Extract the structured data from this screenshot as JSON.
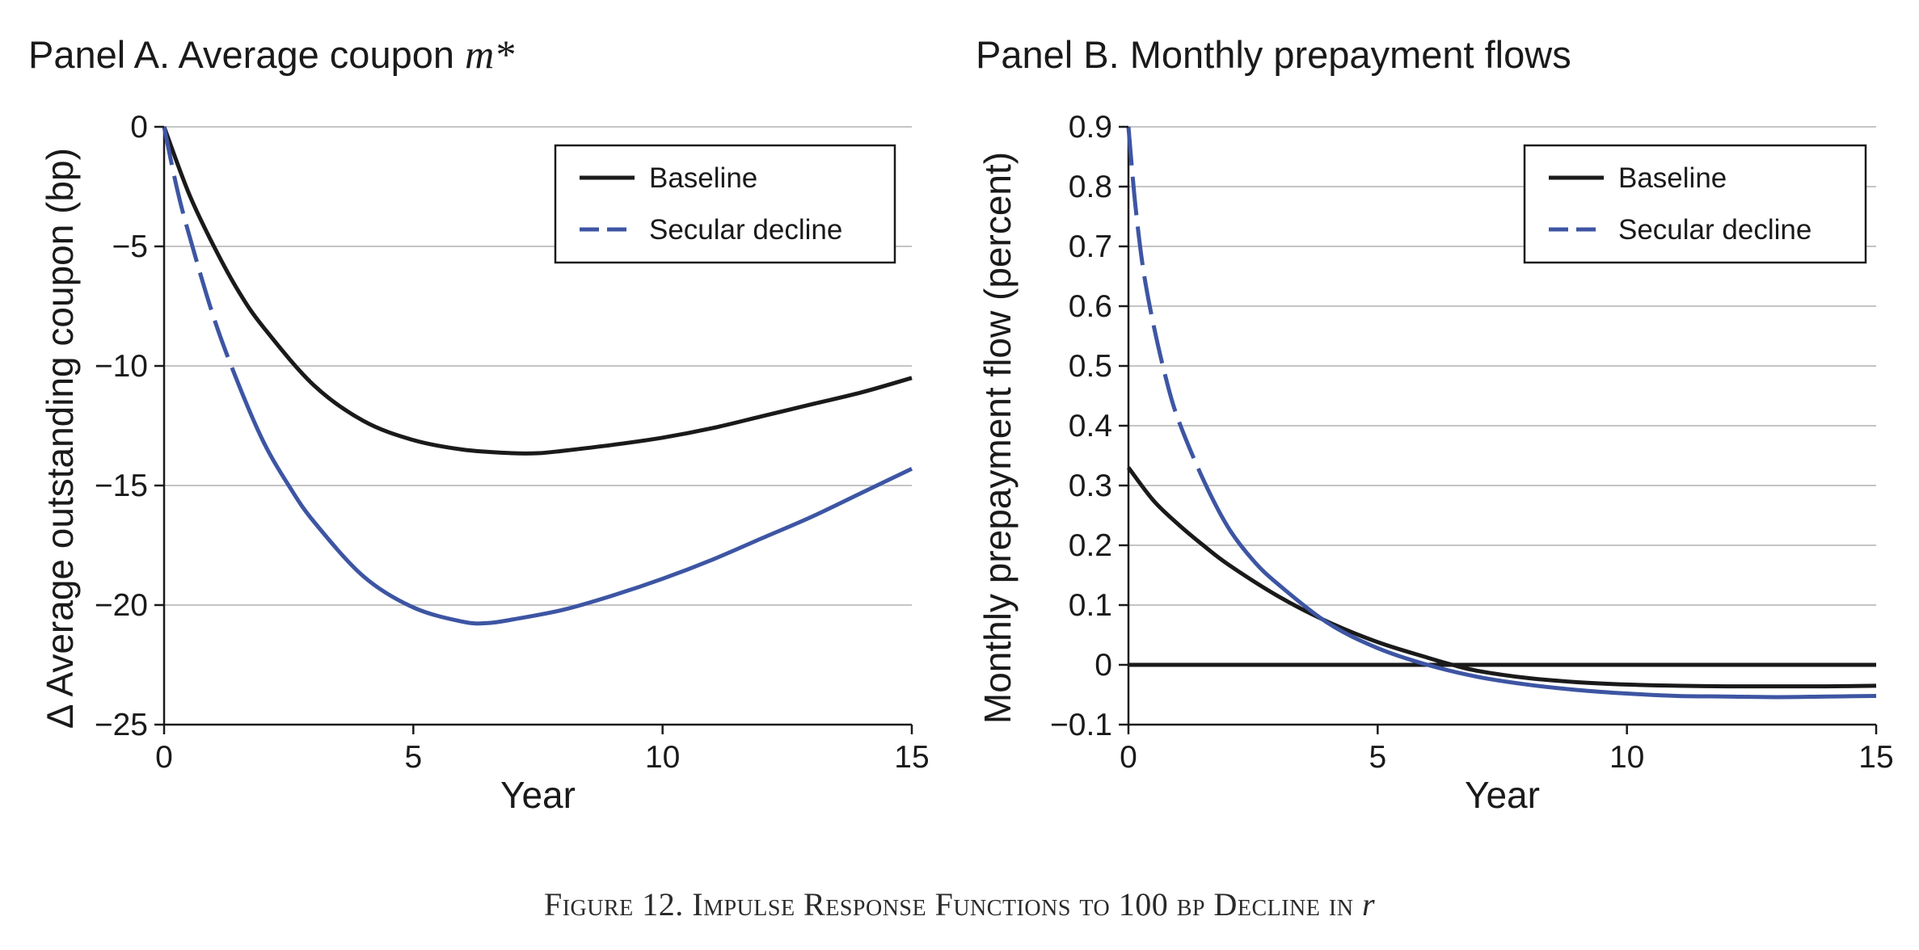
{
  "caption": {
    "text": "Figure 12. Impulse Response Functions to 100 bp Decline in",
    "math": "r"
  },
  "colors": {
    "baseline": "#1a1a1a",
    "secular": "#3d55a3",
    "grid": "#c4c4c4"
  },
  "chart_data": [
    {
      "type": "line",
      "title": "Panel A. Average coupon",
      "title_math": "m*",
      "xlabel": "Year",
      "ylabel": "∆ Average outstanding coupon (bp)",
      "xlim": [
        0,
        15
      ],
      "ylim": [
        -25,
        0
      ],
      "xticks": [
        0,
        5,
        10,
        15
      ],
      "yticks": [
        0,
        -5,
        -10,
        -15,
        -20,
        -25
      ],
      "ytick_labels": [
        "0",
        "−5",
        "−10",
        "−15",
        "−20",
        "−25"
      ],
      "grid": true,
      "legend": "top-right",
      "series": [
        {
          "name": "Baseline",
          "style": "solid",
          "x": [
            0,
            0.5,
            1,
            1.5,
            2,
            3,
            4,
            5,
            6,
            7,
            7.5,
            8,
            9,
            10,
            11,
            12,
            13,
            14,
            15
          ],
          "y": [
            0,
            -2.8,
            -5.0,
            -6.9,
            -8.4,
            -10.8,
            -12.3,
            -13.1,
            -13.5,
            -13.65,
            -13.65,
            -13.55,
            -13.3,
            -13.0,
            -12.6,
            -12.1,
            -11.6,
            -11.1,
            -10.5
          ]
        },
        {
          "name": "Secular decline",
          "style": "dashed",
          "x": [
            0,
            0.25,
            0.5,
            1,
            1.5,
            2,
            2.5,
            3,
            4,
            5,
            6,
            6.5,
            7,
            8,
            9,
            10,
            11,
            12,
            13,
            14,
            15
          ],
          "y": [
            0,
            -2.5,
            -4.5,
            -8.0,
            -10.8,
            -13.2,
            -15.0,
            -16.5,
            -18.8,
            -20.1,
            -20.7,
            -20.75,
            -20.6,
            -20.2,
            -19.6,
            -18.9,
            -18.1,
            -17.2,
            -16.3,
            -15.3,
            -14.3
          ]
        }
      ]
    },
    {
      "type": "line",
      "title": "Panel B. Monthly prepayment flows",
      "xlabel": "Year",
      "ylabel": "Monthly prepayment flow (percent)",
      "xlim": [
        0,
        15
      ],
      "ylim": [
        -0.1,
        0.9
      ],
      "xticks": [
        0,
        5,
        10,
        15
      ],
      "yticks": [
        -0.1,
        0,
        0.1,
        0.2,
        0.3,
        0.4,
        0.5,
        0.6,
        0.7,
        0.8,
        0.9
      ],
      "ytick_labels": [
        "−0.1",
        "0",
        "0.1",
        "0.2",
        "0.3",
        "0.4",
        "0.5",
        "0.6",
        "0.7",
        "0.8",
        "0.9"
      ],
      "grid": true,
      "legend": "top-right",
      "zero_line": [
        0,
        0
      ],
      "series": [
        {
          "name": "Baseline",
          "style": "solid",
          "x": [
            0,
            0.5,
            1,
            1.5,
            2,
            3,
            4,
            5,
            6,
            6.5,
            7,
            8,
            9,
            10,
            11,
            12,
            13,
            14,
            15
          ],
          "y": [
            0.33,
            0.275,
            0.235,
            0.2,
            0.168,
            0.115,
            0.072,
            0.038,
            0.012,
            0.0,
            -0.01,
            -0.022,
            -0.029,
            -0.033,
            -0.035,
            -0.036,
            -0.036,
            -0.036,
            -0.035
          ]
        },
        {
          "name": "Secular decline",
          "style": "dashed",
          "x": [
            0,
            0.05,
            0.15,
            0.3,
            0.5,
            0.75,
            1,
            1.5,
            2,
            2.5,
            3,
            4,
            5,
            6,
            7,
            8,
            9,
            10,
            11,
            12,
            13,
            14,
            15
          ],
          "y": [
            0.9,
            0.85,
            0.76,
            0.66,
            0.57,
            0.48,
            0.41,
            0.31,
            0.23,
            0.175,
            0.135,
            0.07,
            0.028,
            0.0,
            -0.02,
            -0.033,
            -0.042,
            -0.048,
            -0.052,
            -0.053,
            -0.054,
            -0.053,
            -0.052
          ]
        }
      ]
    }
  ]
}
